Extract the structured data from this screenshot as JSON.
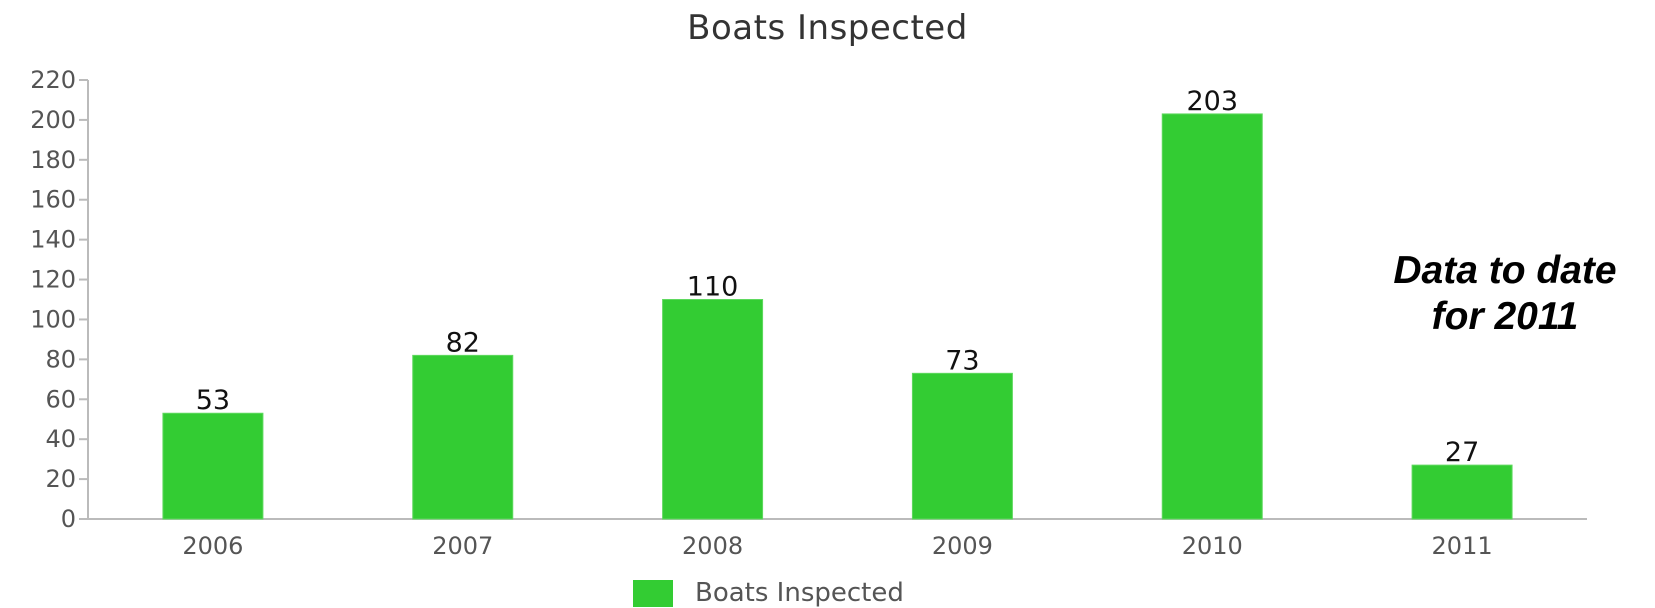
{
  "chart_data": {
    "type": "bar",
    "title": "Boats Inspected",
    "categories": [
      "2006",
      "2007",
      "2008",
      "2009",
      "2010",
      "2011"
    ],
    "series": [
      {
        "name": "Boats Inspected",
        "values": [
          53,
          82,
          110,
          73,
          203,
          27
        ],
        "color": "#33cc33"
      }
    ],
    "data_labels": [
      "53",
      "82",
      "110",
      "73",
      "203",
      "27"
    ],
    "y_ticks": [
      "0",
      "20",
      "40",
      "60",
      "80",
      "100",
      "120",
      "140",
      "160",
      "180",
      "200",
      "220"
    ],
    "ylim": [
      0,
      220
    ],
    "grid": false,
    "legend_position": "bottom-center",
    "annotation": {
      "line1": "Data to date",
      "line2": "for 2011"
    }
  }
}
